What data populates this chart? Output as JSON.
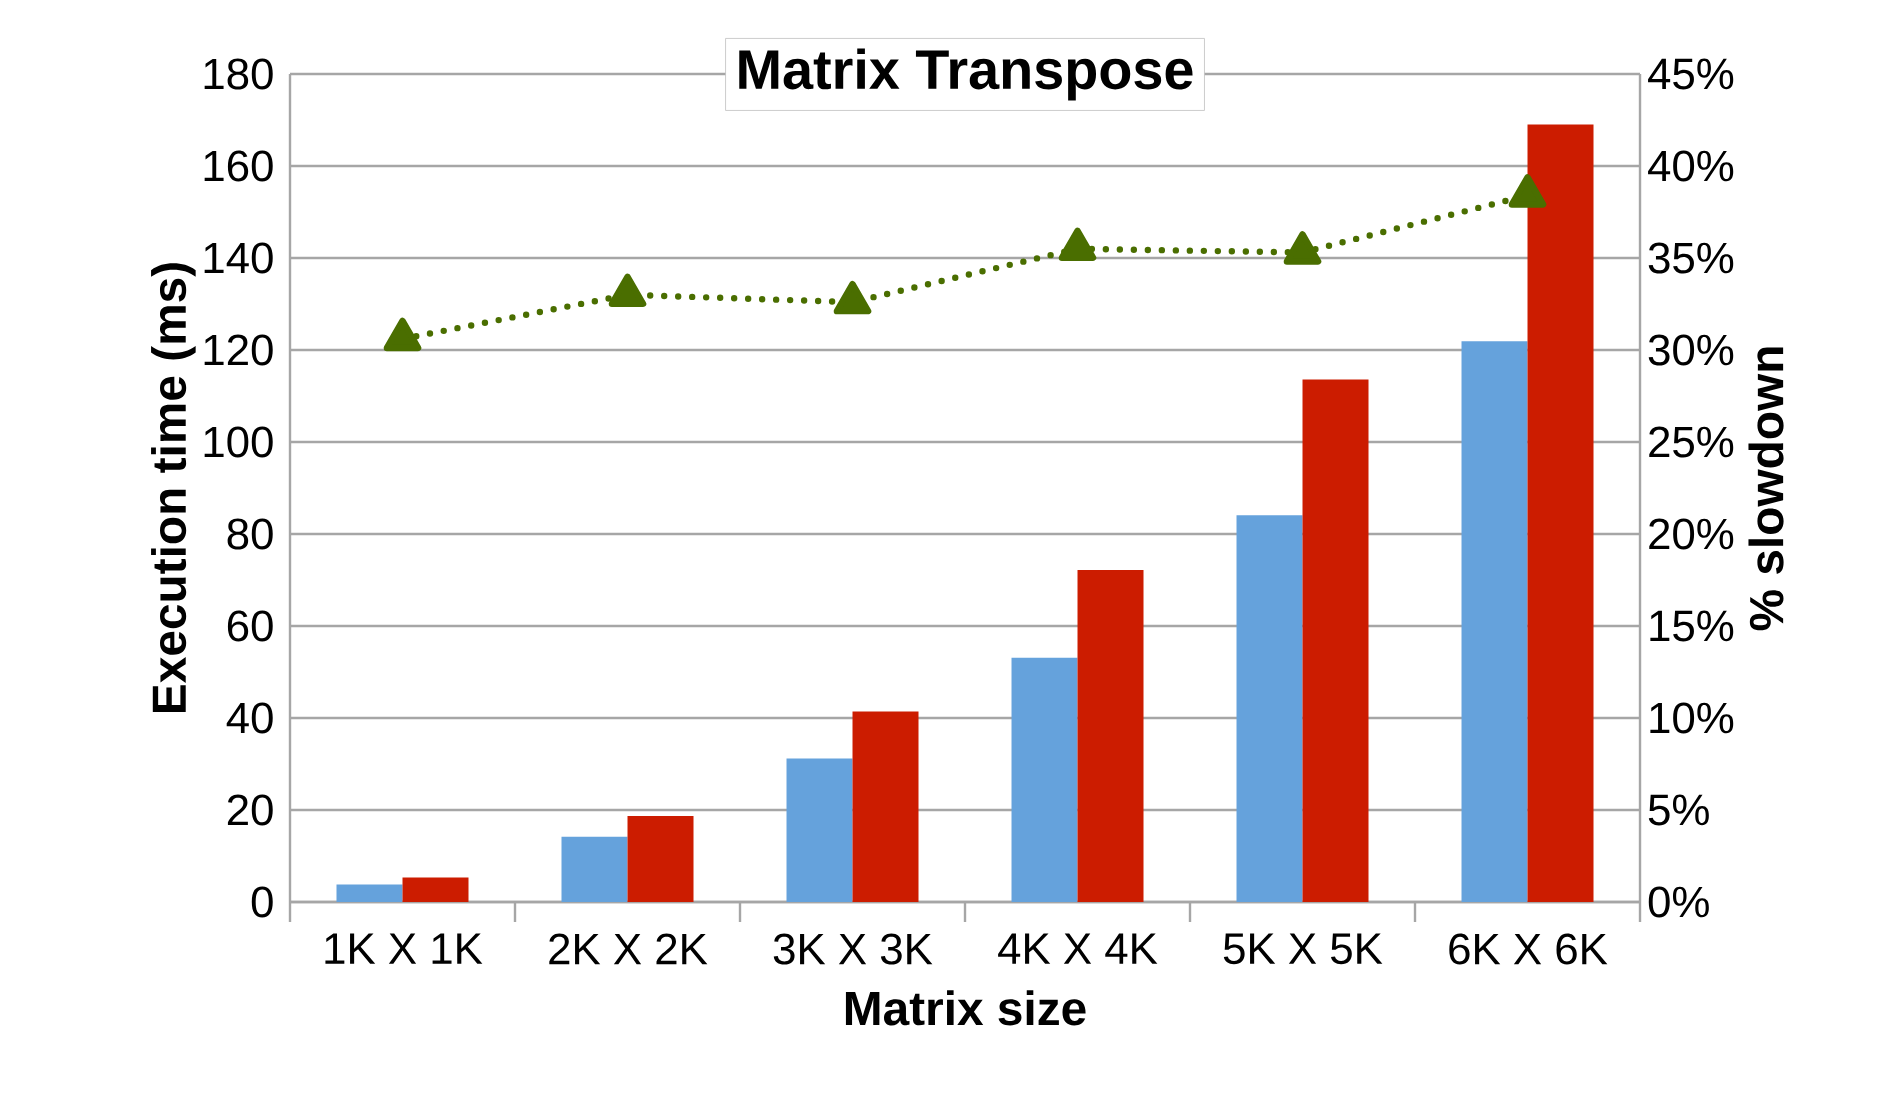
{
  "chart_data": {
    "type": "bar",
    "title": "Matrix Transpose",
    "xlabel": "Matrix size",
    "ylabel": "Execution time (ms)",
    "y2label": "% slowdown",
    "categories": [
      "1K X 1K",
      "2K X 2K",
      "3K X 3K",
      "4K X 4K",
      "5K X 5K",
      "6K X 6K"
    ],
    "series": [
      {
        "color": "#65a2dc",
        "values": [
          3.8,
          14.2,
          31.2,
          53.1,
          84.1,
          121.9
        ]
      },
      {
        "color": "#cc1c00",
        "values": [
          5.3,
          18.7,
          41.4,
          72.2,
          113.6,
          169
        ]
      },
      {
        "type": "line",
        "axis": "y2",
        "color": "#4a6e00",
        "marker": "triangle",
        "line_style": "dotted",
        "values": [
          30.6,
          33.0,
          32.6,
          35.5,
          35.3,
          38.4
        ]
      }
    ],
    "ylim": [
      0,
      180
    ],
    "yticks": [
      0,
      20,
      40,
      60,
      80,
      100,
      120,
      140,
      160,
      180
    ],
    "y2lim": [
      0,
      45
    ],
    "y2ticks": [
      {
        "value": 0,
        "label": "0%"
      },
      {
        "value": 5,
        "label": "5%"
      },
      {
        "value": 10,
        "label": "10%"
      },
      {
        "value": 15,
        "label": "15%"
      },
      {
        "value": 20,
        "label": "20%"
      },
      {
        "value": 25,
        "label": "25%"
      },
      {
        "value": 30,
        "label": "30%"
      },
      {
        "value": 35,
        "label": "35%"
      },
      {
        "value": 40,
        "label": "40%"
      },
      {
        "value": 45,
        "label": "45%"
      }
    ],
    "grid": "y"
  }
}
